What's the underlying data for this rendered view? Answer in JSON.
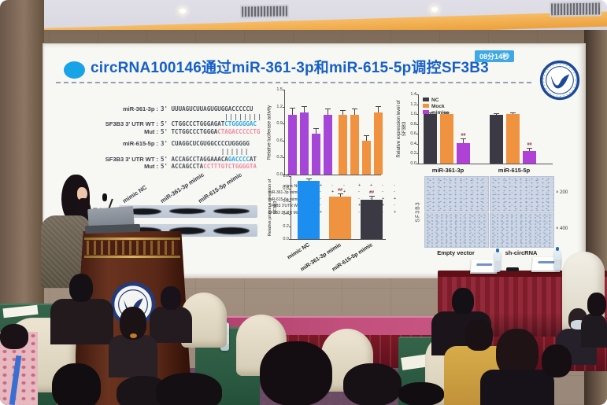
{
  "slide": {
    "title": "circRNA100146通过miR-361-3p和miR-615-5p调控SF3B3",
    "timer_badge": "08分14秒",
    "title_color": "#1660c6",
    "bullet_color": "#18a3e8",
    "sequences": {
      "highlight_blue": "#2ba7dc",
      "highlight_pink": "#f2889d",
      "rows": [
        {
          "label": "miR-361-3p :",
          "parts": [
            {
              "t": "3' UUUAGUCUUAGUGUGGACCCCCU",
              "c": "seq"
            }
          ]
        },
        {
          "label": "",
          "padch": 18,
          "parts": [
            {
              "t": "||||||||",
              "c": "pair"
            }
          ]
        },
        {
          "label": "SF3B3 3' UTR WT :",
          "parts": [
            {
              "t": "5' CTGGCCCTGGGAGAT",
              "c": "seq"
            },
            {
              "t": "CTGGGGGAC",
              "c": "blue"
            }
          ]
        },
        {
          "label": "Mut :",
          "parts": [
            {
              "t": "5' TCTGGCCCTGGGA",
              "c": "seq"
            },
            {
              "t": "CTAGACCCCCTG",
              "c": "pink"
            }
          ]
        },
        {
          "label": "miR-615-5p :",
          "gap": true,
          "parts": [
            {
              "t": "3' CUAGGCUCGUGGCCCCUGGGGG",
              "c": "seq"
            }
          ]
        },
        {
          "label": "",
          "padch": 17,
          "parts": [
            {
              "t": "||||||",
              "c": "pair"
            }
          ]
        },
        {
          "label": "SF3B3 3' UTR WT :",
          "parts": [
            {
              "t": "5' ACCAGCCTAGGAAACA",
              "c": "seq"
            },
            {
              "t": "GACCCC",
              "c": "blue"
            },
            {
              "t": "AT",
              "c": "seq"
            }
          ]
        },
        {
          "label": "Mut :",
          "parts": [
            {
              "t": "5' ACCAGCCTA",
              "c": "seq"
            },
            {
              "t": "CCTTTGTCTGGGGTA",
              "c": "pink"
            }
          ]
        }
      ]
    },
    "western_blot": {
      "lanes": [
        "mimic NC",
        "miR-361-3p mimic",
        "miR-615-5p mimic"
      ],
      "rows": [
        "SF3B3",
        "GAPDH"
      ]
    },
    "ihc": {
      "row_label": "SF3B3",
      "column_labels": [
        "Empty vector",
        "sh-circRNA"
      ],
      "magnifications": [
        "× 200",
        "× 400"
      ]
    }
  },
  "chart_data": [
    {
      "type": "bar",
      "ylabel": "Relative luciferase activity",
      "ylim": [
        0,
        1.5
      ],
      "yticks": [
        0.0,
        0.3,
        0.6,
        0.9,
        1.2,
        1.5
      ],
      "grid": false,
      "bars": [
        {
          "value": 1.05,
          "err": 0.12,
          "color": "#a546d8"
        },
        {
          "value": 1.1,
          "err": 0.1,
          "color": "#a546d8"
        },
        {
          "value": 0.72,
          "err": 0.08,
          "color": "#a546d8"
        },
        {
          "value": 1.05,
          "err": 0.1,
          "color": "#a546d8"
        },
        {
          "value": 1.05,
          "err": 0.08,
          "color": "#f0923f"
        },
        {
          "value": 1.05,
          "err": 0.1,
          "color": "#f0923f"
        },
        {
          "value": 0.6,
          "err": 0.08,
          "color": "#f0923f"
        },
        {
          "value": 1.1,
          "err": 0.1,
          "color": "#f0923f"
        }
      ],
      "condition_rows": [
        {
          "label": "mimic NC",
          "signs": [
            "+",
            "+",
            "-",
            "-",
            "+",
            "+",
            "-",
            "-"
          ]
        },
        {
          "label": "miR-361-3p mimic",
          "signs": [
            "-",
            "-",
            "+",
            "+",
            "-",
            "-",
            "-",
            "-"
          ]
        },
        {
          "label": "miR-615-5p mimic",
          "signs": [
            "-",
            "-",
            "-",
            "-",
            "-",
            "-",
            "+",
            "+"
          ]
        },
        {
          "label": "SF3B3 3'UTR WT",
          "signs": [
            "+",
            "-",
            "+",
            "-",
            "+",
            "-",
            "+",
            "-"
          ]
        },
        {
          "label": "SF3B3 3'UTR Mut",
          "signs": [
            "-",
            "+",
            "-",
            "+",
            "-",
            "+",
            "-",
            "+"
          ]
        }
      ]
    },
    {
      "type": "bar",
      "ylabel": "Relative expression level of SF3B3",
      "ylim": [
        0,
        1.4
      ],
      "yticks": [
        0.0,
        0.2,
        0.4,
        0.6,
        0.8,
        1.0,
        1.2,
        1.4
      ],
      "grid": false,
      "legend_position": "top-left",
      "categories": [
        "miR-361-3p",
        "miR-615-5p"
      ],
      "series": [
        {
          "name": "NC",
          "color": "#3b3a44",
          "values": [
            1.0,
            0.98
          ],
          "err": [
            0.02,
            0.02
          ],
          "annotations": [
            "",
            ""
          ]
        },
        {
          "name": "Mock",
          "color": "#ef9340",
          "values": [
            1.0,
            1.0
          ],
          "err": [
            0.02,
            0.02
          ],
          "annotations": [
            "",
            ""
          ]
        },
        {
          "name": "mimics",
          "color": "#b041d6",
          "values": [
            0.42,
            0.25
          ],
          "err": [
            0.08,
            0.05
          ],
          "annotations": [
            "##",
            "##"
          ]
        }
      ]
    },
    {
      "type": "bar",
      "ylabel": "Relative protein expression of SF3B3",
      "ylim": [
        0,
        1.0
      ],
      "yticks": [
        0.0,
        0.2,
        0.4,
        0.6,
        0.8,
        1.0
      ],
      "grid": false,
      "categories": [
        "mimic NC",
        "miR-361-3p mimic",
        "miR-615-5p mimic"
      ],
      "bars": [
        {
          "value": 0.92,
          "err": 0.03,
          "color": "#1c8ef0",
          "annotation": ""
        },
        {
          "value": 0.67,
          "err": 0.04,
          "color": "#ef9340",
          "annotation": "##"
        },
        {
          "value": 0.63,
          "err": 0.05,
          "color": "#3b3a44",
          "annotation": "##"
        }
      ]
    }
  ],
  "palette": {
    "wall": "#97826f",
    "ceiling": "#dcdbe4",
    "cove_light": "#eda23f",
    "screen": "#f7f7f4",
    "stage_carpet": "#c24f7c",
    "stage_skirt": "#6d1422",
    "head_table_cloth": "#8c2330",
    "audience_table_cloth": "#2c5a45",
    "chair_cover": "#e8e0cc",
    "podium_wood": "#5a2817",
    "logo_blue": "#1d4a96"
  }
}
